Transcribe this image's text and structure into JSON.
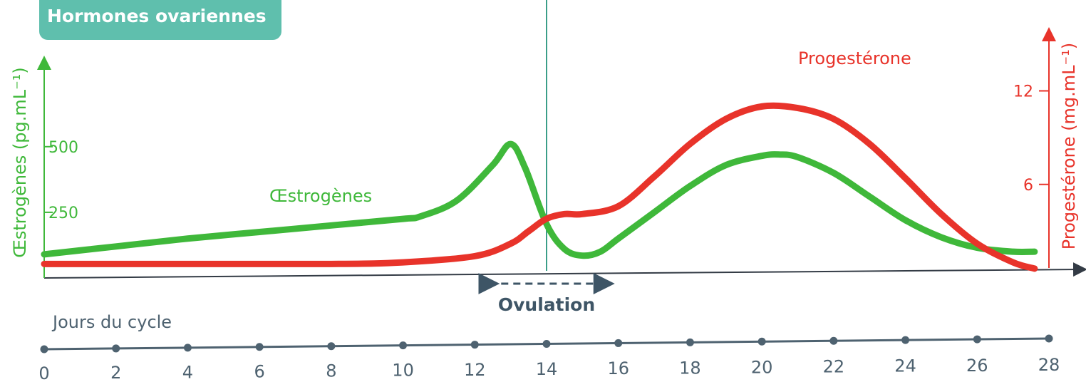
{
  "colors": {
    "estrogen": "#3fb83a",
    "progesterone": "#e8332a",
    "axis": "#333b45",
    "ovulation_line": "#3b9e88",
    "badge": "#5fbfad",
    "days_axis": "#4e6270",
    "ovulation_label": "#3e5566"
  },
  "title": "Hormones ovariennes",
  "chart_data": {
    "type": "line",
    "title": "Hormones ovariennes",
    "xlabel": "Jours du cycle",
    "xlim": [
      0,
      28
    ],
    "x_ticks": [
      "0",
      "2",
      "4",
      "6",
      "8",
      "10",
      "12",
      "14",
      "16",
      "18",
      "20",
      "22",
      "24",
      "26",
      "28"
    ],
    "y_left": {
      "label": "Œstrogènes (pg.mL⁻¹)",
      "ticks": [
        "500",
        "250"
      ],
      "tick_values": [
        500,
        250
      ],
      "lim": [
        0,
        950
      ]
    },
    "y_right": {
      "label": "Progestérone (mg.mL⁻¹)",
      "ticks": [
        "12",
        "6"
      ],
      "tick_values": [
        12,
        6
      ],
      "lim": [
        0,
        16
      ]
    },
    "series": [
      {
        "name": "Œstrogènes",
        "axis": "left",
        "x": [
          0,
          2,
          4,
          6,
          8,
          10,
          10.5,
          11.5,
          12.5,
          13,
          13.4,
          14,
          14.5,
          15,
          15.5,
          16,
          17,
          18,
          19,
          20,
          20.5,
          21,
          22,
          23,
          24,
          25,
          26,
          27,
          27.6
        ],
        "values": [
          90,
          120,
          150,
          175,
          200,
          225,
          235,
          295,
          430,
          510,
          420,
          205,
          110,
          85,
          100,
          150,
          250,
          350,
          430,
          465,
          470,
          460,
          400,
          310,
          220,
          155,
          115,
          100,
          100
        ]
      },
      {
        "name": "Progestérone",
        "axis": "right",
        "x": [
          0,
          4,
          8,
          10,
          12,
          13,
          13.5,
          14,
          14.5,
          15,
          16,
          17,
          18,
          19,
          20,
          21,
          22,
          23,
          24,
          25,
          26,
          27,
          27.6
        ],
        "values": [
          0.9,
          0.9,
          0.9,
          1.0,
          1.4,
          2.2,
          3.0,
          3.8,
          4.1,
          4.1,
          4.6,
          6.5,
          8.6,
          10.2,
          11.0,
          10.9,
          10.2,
          8.6,
          6.4,
          4.1,
          2.2,
          1.0,
          0.6
        ]
      }
    ],
    "annotations": {
      "ovulation_day": 14,
      "ovulation_label": "Ovulation",
      "ovulation_range": [
        12,
        16
      ]
    },
    "grid": false
  }
}
